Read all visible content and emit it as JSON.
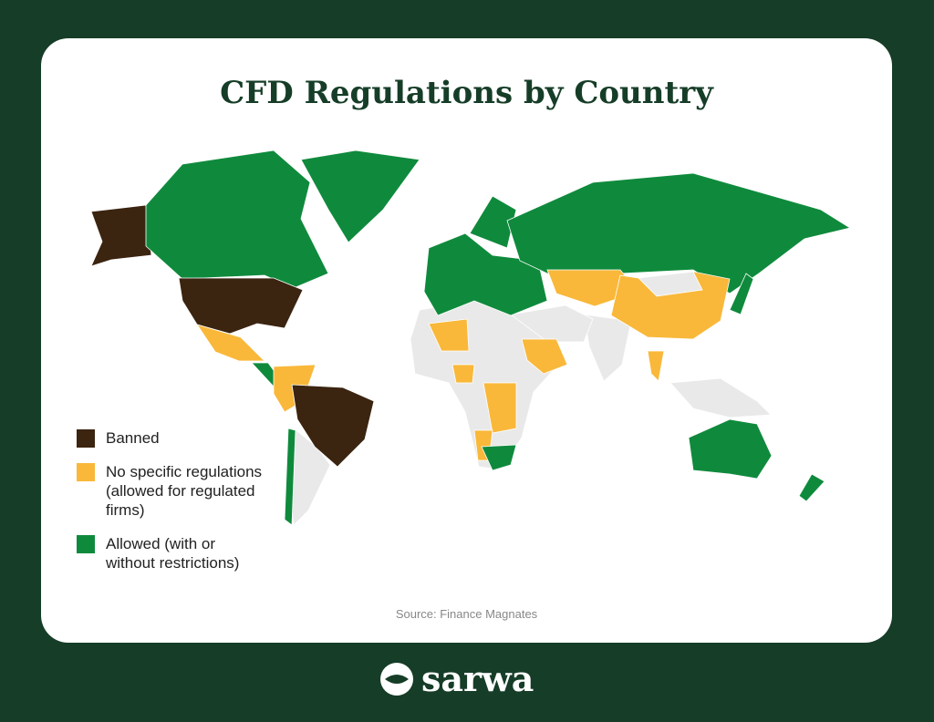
{
  "title": "CFD Regulations by Country",
  "legend": [
    {
      "label": "Banned",
      "color": "#3b2410"
    },
    {
      "label": "No specific regulations (allowed for regulated firms)",
      "color": "#f9b83a"
    },
    {
      "label": "Allowed (with or without restrictions)",
      "color": "#0f8a3c"
    }
  ],
  "source": "Source: Finance Magnates",
  "brand": "sarwa"
}
